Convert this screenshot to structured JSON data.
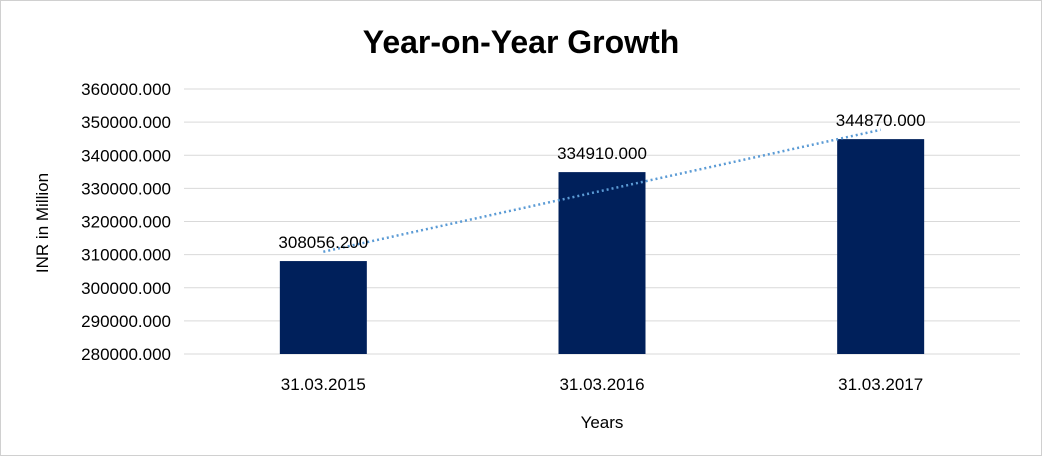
{
  "chart_data": {
    "type": "bar",
    "title": "Year-on-Year Growth",
    "xlabel": "Years",
    "ylabel": "INR in Million",
    "categories": [
      "31.03.2015",
      "31.03.2016",
      "31.03.2017"
    ],
    "values": [
      308056.2,
      334910.0,
      344870.0
    ],
    "data_labels": [
      "308056.200",
      "334910.000",
      "344870.000"
    ],
    "ylim": [
      280000,
      360000
    ],
    "yticks": [
      280000,
      290000,
      300000,
      310000,
      320000,
      330000,
      340000,
      350000,
      360000
    ],
    "ytick_labels": [
      "280000.000",
      "290000.000",
      "300000.000",
      "310000.000",
      "320000.000",
      "330000.000",
      "340000.000",
      "350000.000",
      "360000.000"
    ],
    "grid": true,
    "legend": "none",
    "trendline": "linear",
    "colors": {
      "bar": "#00205b",
      "trendline": "#5b9bd5",
      "grid": "#d9d9d9"
    }
  }
}
